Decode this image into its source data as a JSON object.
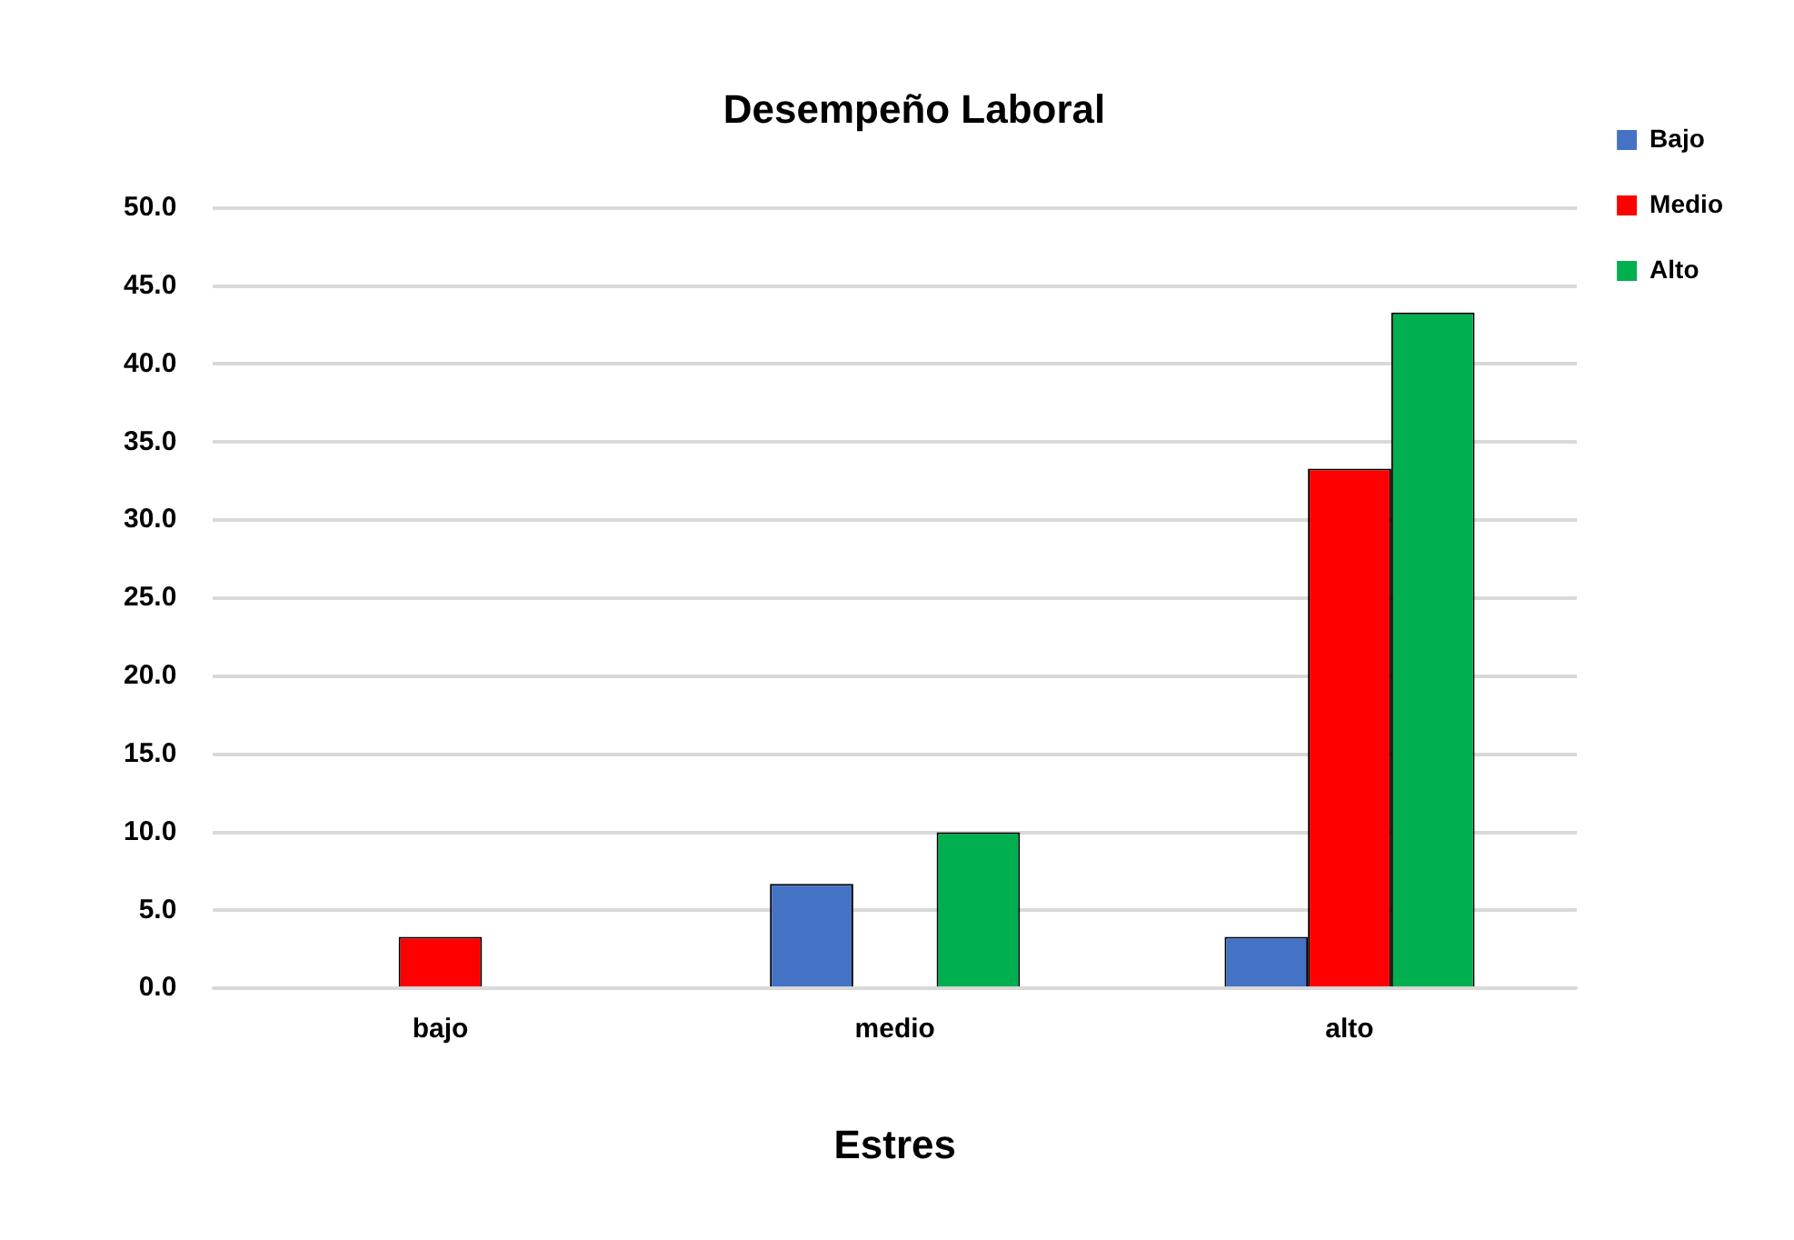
{
  "chart_data": {
    "type": "bar",
    "title": "Desempeño Laboral",
    "xlabel": "Estres",
    "categories": [
      "bajo",
      "medio",
      "alto"
    ],
    "series": [
      {
        "name": "Bajo",
        "color": "#4472c4",
        "values": [
          0,
          6.7,
          3.3
        ]
      },
      {
        "name": "Medio",
        "color": "#ff0000",
        "values": [
          3.3,
          0,
          33.3
        ]
      },
      {
        "name": "Alto",
        "color": "#00b050",
        "values": [
          0,
          10.0,
          43.3
        ]
      }
    ],
    "ylim": [
      0,
      50
    ],
    "yticks": [
      {
        "value": 0,
        "label": "0.0"
      },
      {
        "value": 5,
        "label": "5.0"
      },
      {
        "value": 10,
        "label": "10.0"
      },
      {
        "value": 15,
        "label": "15.0"
      },
      {
        "value": 20,
        "label": "20.0"
      },
      {
        "value": 25,
        "label": "25.0"
      },
      {
        "value": 30,
        "label": "30.0"
      },
      {
        "value": 35,
        "label": "35.0"
      },
      {
        "value": 40,
        "label": "40.0"
      },
      {
        "value": 45,
        "label": "45.0"
      },
      {
        "value": 50,
        "label": "50.0"
      }
    ],
    "grid": "y",
    "legend": "top right"
  }
}
